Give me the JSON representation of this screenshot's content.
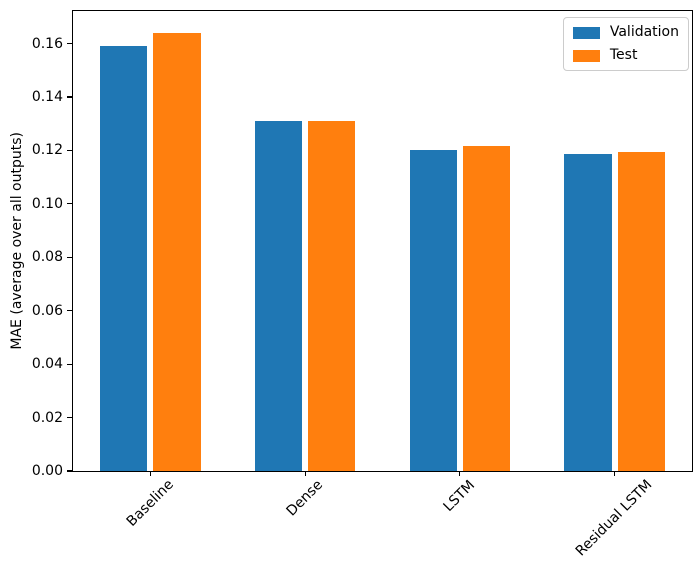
{
  "chart_data": {
    "type": "bar",
    "title": "",
    "xlabel": "",
    "ylabel": "MAE (average over all outputs)",
    "categories": [
      "Baseline",
      "Dense",
      "LSTM",
      "Residual LSTM"
    ],
    "series": [
      {
        "name": "Validation",
        "color": "#1f77b4",
        "values": [
          0.159,
          0.131,
          0.12,
          0.1185
        ]
      },
      {
        "name": "Test",
        "color": "#ff7f0e",
        "values": [
          0.164,
          0.131,
          0.1215,
          0.1195
        ]
      }
    ],
    "ylim": [
      0,
      0.1722
    ],
    "yticks": {
      "values": [
        0,
        0.02,
        0.04,
        0.06,
        0.08,
        0.1,
        0.12,
        0.14,
        0.16
      ],
      "labels": [
        "0.00",
        "0.02",
        "0.04",
        "0.06",
        "0.08",
        "0.10",
        "0.12",
        "0.14",
        "0.16"
      ]
    },
    "xtick_rotation_deg": 45,
    "grid": false,
    "legend": {
      "position": "upper right",
      "entries": [
        "Validation",
        "Test"
      ]
    },
    "bar_layout": {
      "group_offset_frac": 0.172,
      "bar_width_frac": 0.305
    }
  },
  "figure": {
    "background": "#ffffff",
    "spine_color": "#000000",
    "text_color": "#000000"
  }
}
